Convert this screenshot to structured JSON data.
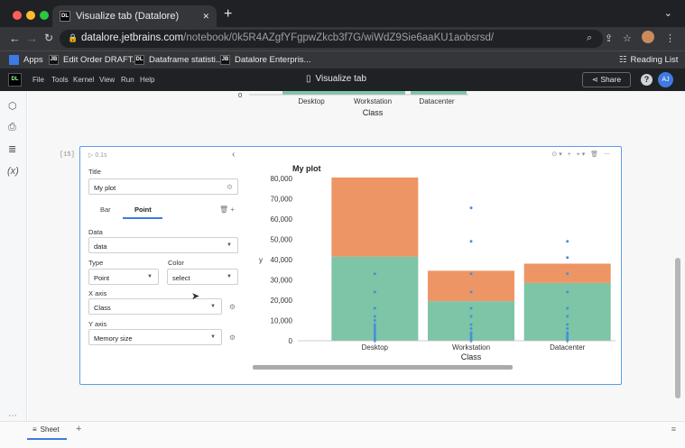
{
  "browser": {
    "tab_title": "Visualize tab (Datalore)",
    "tab_close": "✕",
    "new_tab": "+",
    "url_host": "datalore.jetbrains.com",
    "url_path": "/notebook/0k5R4AZgfYFgpwZkcb3f7G/wiWdZ9Sie6aaKU1aobsrsd/",
    "bookmarks": [
      {
        "label": "Apps",
        "icon": "apps-grid-icon"
      },
      {
        "label": "Edit Order DRAFT...",
        "icon": "jetbrains-icon"
      },
      {
        "label": "Dataframe statisti...",
        "icon": "datalore-icon"
      },
      {
        "label": "Datalore Enterpris...",
        "icon": "jetbrains-icon"
      }
    ],
    "reading_list": "Reading List"
  },
  "app": {
    "menu": [
      "File",
      "Tools",
      "Kernel",
      "View",
      "Run",
      "Help"
    ],
    "title": "Visualize tab",
    "share_label": "Share",
    "help": "?",
    "avatar": "AJ"
  },
  "prev_chart": {
    "zero": "0",
    "categories": [
      "Desktop",
      "Workstation",
      "Datacenter"
    ],
    "xlabel": "Class"
  },
  "cell": {
    "number": "[15]",
    "run_info": "▷ 0.1s",
    "collapse": "‹",
    "tools": "⊙▾ + ⌖▾ 🗑 ⋯"
  },
  "panel": {
    "title_label": "Title",
    "title_value": "My plot",
    "layer_tabs": [
      "Bar",
      "Point"
    ],
    "active_layer": "Point",
    "layer_actions": "🗑 +",
    "data_label": "Data",
    "data_value": "data",
    "type_label": "Type",
    "type_value": "Point",
    "color_label": "Color",
    "color_value": "select",
    "xaxis_label": "X axis",
    "xaxis_value": "Class",
    "yaxis_label": "Y axis",
    "yaxis_value": "Memory size"
  },
  "chart_data": {
    "type": "bar",
    "title": "My plot",
    "xlabel": "Class",
    "ylabel": "y",
    "categories": [
      "Desktop",
      "Workstation",
      "Datacenter"
    ],
    "ylim": [
      0,
      80000
    ],
    "yticks": [
      0,
      10000,
      20000,
      30000,
      40000,
      50000,
      60000,
      70000,
      80000
    ],
    "ytick_labels": [
      "0",
      "10,000",
      "20,000",
      "30,000",
      "40,000",
      "50,000",
      "60,000",
      "70,000",
      "80,000"
    ],
    "series": [
      {
        "values": [
          41500,
          19500,
          28500
        ],
        "color": "#7ec4a6"
      },
      {
        "values": [
          39000,
          15000,
          9500
        ],
        "color": "#ee9565"
      }
    ],
    "points": {
      "color": "#4a8fd8",
      "values": [
        [
          0,
          1000,
          2000,
          3000,
          4000,
          5000,
          6000,
          7000,
          8000,
          10000,
          12000,
          16000,
          24000,
          33000
        ],
        [
          0,
          1000,
          2000,
          3000,
          4000,
          6000,
          8000,
          12000,
          16000,
          24000,
          33000,
          49000,
          65500
        ],
        [
          0,
          1000,
          2000,
          3000,
          4000,
          6000,
          8000,
          12000,
          16000,
          24000,
          33000,
          41000,
          49000
        ]
      ]
    },
    "grid": false,
    "legend": "none"
  },
  "footer": {
    "sheet_label": "Sheet",
    "add": "+"
  },
  "colors": {
    "accent": "#3f7ae0",
    "bar_lower": "#7ec4a6",
    "bar_upper": "#ee9565",
    "point": "#4a8fd8"
  }
}
